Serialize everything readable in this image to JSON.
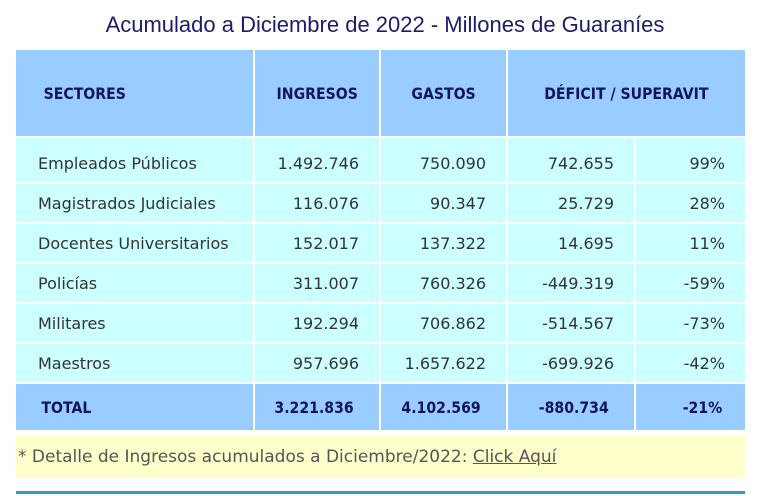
{
  "title": "Acumulado a Diciembre de 2022 - Millones de Guaraníes",
  "headers": {
    "sectores": "SECTORES",
    "ingresos": "INGRESOS",
    "gastos": "GASTOS",
    "deficit": "DÉFICIT / SUPERAVIT"
  },
  "rows": [
    {
      "sector": "Empleados Públicos",
      "ingresos": "1.492.746",
      "gastos": "750.090",
      "deficit": "742.655",
      "pct": "99%"
    },
    {
      "sector": "Magistrados Judiciales",
      "ingresos": "116.076",
      "gastos": "90.347",
      "deficit": "25.729",
      "pct": "28%"
    },
    {
      "sector": "Docentes Universitarios",
      "ingresos": "152.017",
      "gastos": "137.322",
      "deficit": "14.695",
      "pct": "11%"
    },
    {
      "sector": "Policías",
      "ingresos": "311.007",
      "gastos": "760.326",
      "deficit": "-449.319",
      "pct": "-59%"
    },
    {
      "sector": "Militares",
      "ingresos": "192.294",
      "gastos": "706.862",
      "deficit": "-514.567",
      "pct": "-73%"
    },
    {
      "sector": "Maestros",
      "ingresos": "957.696",
      "gastos": "1.657.622",
      "deficit": "-699.926",
      "pct": "-42%"
    }
  ],
  "total": {
    "label": "TOTAL",
    "ingresos": "3.221.836",
    "gastos": "4.102.569",
    "deficit": "-880.734",
    "pct": "-21%"
  },
  "note": {
    "text": "* Detalle de Ingresos acumulados a Diciembre/2022: ",
    "link": "Click Aquí"
  }
}
